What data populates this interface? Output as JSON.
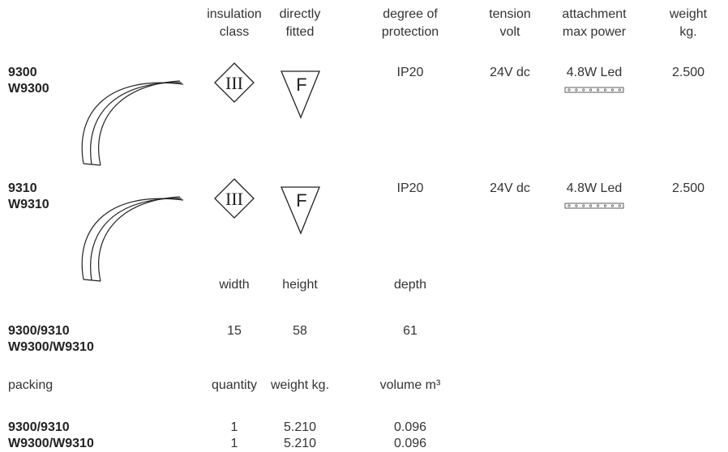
{
  "header": {
    "columns": [
      [
        "insulation",
        "class"
      ],
      [
        "directly",
        "fitted"
      ],
      [
        "degree of",
        "protection"
      ],
      [
        "tension",
        "volt"
      ],
      [
        "attachment",
        "max power"
      ],
      [
        "weight",
        "kg."
      ]
    ]
  },
  "products": [
    {
      "codes": [
        "9300",
        "W9300"
      ],
      "insulation": "III",
      "fitted": "F",
      "protection": "IP20",
      "tension": "24V dc",
      "power": "4.8W Led",
      "weight": "2.500"
    },
    {
      "codes": [
        "9310",
        "W9310"
      ],
      "insulation": "III",
      "fitted": "F",
      "protection": "IP20",
      "tension": "24V dc",
      "power": "4.8W Led",
      "weight": "2.500"
    }
  ],
  "dimensions": {
    "headers": [
      "width",
      "height",
      "depth"
    ],
    "rows": [
      {
        "codes": [
          "9300/9310",
          "W9300/W9310"
        ],
        "values": [
          "15",
          "58",
          "61"
        ]
      }
    ]
  },
  "packing": {
    "label": "packing",
    "headers": [
      "quantity",
      "weight kg.",
      "volume m³"
    ],
    "rows": [
      {
        "code": "9300/9310",
        "values": [
          "1",
          "5.210",
          "0.096"
        ]
      },
      {
        "code": "W9300/W9310",
        "values": [
          "1",
          "5.210",
          "0.096"
        ]
      }
    ]
  }
}
